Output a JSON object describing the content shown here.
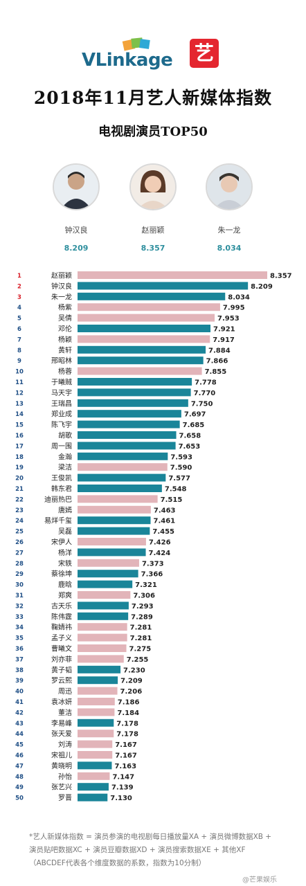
{
  "brand": {
    "name_v": "VLink",
    "name_age": "age",
    "badge": "艺",
    "badge_color": "#e4262f"
  },
  "title": "2018年11月艺人新媒体指数",
  "subtitle": "电视剧演员TOP50",
  "top3": [
    {
      "name": "钟汉良",
      "score": "8.209"
    },
    {
      "name": "赵丽颖",
      "score": "8.357"
    },
    {
      "name": "朱一龙",
      "score": "8.034"
    }
  ],
  "footnote": "*艺人新媒体指数 = 演员参演的电视剧每日播放量XA + 演员微博数据XB + 演员贴吧数据XC + 演员豆瓣数据XD + 演员搜索数据XE + 其他XF（ABCDEF代表各个维度数据的系数，指数为10分制）",
  "watermark": "@芒果娱乐",
  "colors": {
    "female": "#e2b4b9",
    "male": "#1a8599",
    "rank_top": "#d9232d",
    "rank": "#1f4f86"
  },
  "chart_data": {
    "type": "bar",
    "orientation": "horizontal",
    "title": "电视剧演员TOP50",
    "categories": [
      "赵丽颖",
      "钟汉良",
      "朱一龙",
      "杨紫",
      "吴倩",
      "邓伦",
      "杨颖",
      "黄轩",
      "邢昭林",
      "杨蓉",
      "于曦贼",
      "马天宇",
      "王瑞昌",
      "郑业成",
      "陈飞宇",
      "胡歌",
      "周一围",
      "金瀚",
      "梁洁",
      "王俊凯",
      "韩东君",
      "迪丽热巴",
      "唐嫣",
      "易烊千玺",
      "吴磊",
      "宋伊人",
      "杨洋",
      "宋轶",
      "蔡徐坤",
      "鹿晗",
      "郑爽",
      "古天乐",
      "陈伟霆",
      "鞠婧祎",
      "孟子义",
      "曹曦文",
      "刘亦菲",
      "黄子韬",
      "罗云熙",
      "周迅",
      "袁冰妍",
      "董洁",
      "李易峰",
      "张天爱",
      "刘涛",
      "宋祖儿",
      "黄晓明",
      "孙怡",
      "张艺兴",
      "罗晋"
    ],
    "values": [
      8.357,
      8.209,
      8.034,
      7.995,
      7.953,
      7.921,
      7.917,
      7.884,
      7.866,
      7.855,
      7.778,
      7.77,
      7.75,
      7.697,
      7.685,
      7.658,
      7.653,
      7.593,
      7.59,
      7.577,
      7.548,
      7.515,
      7.463,
      7.461,
      7.455,
      7.426,
      7.424,
      7.373,
      7.366,
      7.321,
      7.306,
      7.293,
      7.289,
      7.281,
      7.281,
      7.275,
      7.255,
      7.23,
      7.209,
      7.206,
      7.186,
      7.184,
      7.178,
      7.178,
      7.167,
      7.167,
      7.163,
      7.147,
      7.139,
      7.13
    ],
    "gender": [
      "f",
      "m",
      "m",
      "f",
      "f",
      "m",
      "f",
      "m",
      "m",
      "f",
      "m",
      "m",
      "m",
      "m",
      "m",
      "m",
      "m",
      "m",
      "f",
      "m",
      "m",
      "f",
      "f",
      "m",
      "m",
      "f",
      "m",
      "f",
      "m",
      "m",
      "f",
      "m",
      "m",
      "f",
      "f",
      "f",
      "f",
      "m",
      "m",
      "f",
      "f",
      "f",
      "m",
      "f",
      "f",
      "f",
      "m",
      "f",
      "m",
      "m"
    ],
    "ranks": [
      1,
      2,
      3,
      4,
      5,
      6,
      7,
      8,
      9,
      10,
      11,
      12,
      13,
      14,
      15,
      16,
      17,
      18,
      19,
      20,
      21,
      22,
      23,
      24,
      25,
      26,
      27,
      28,
      29,
      30,
      31,
      32,
      33,
      34,
      35,
      36,
      37,
      38,
      39,
      40,
      41,
      42,
      43,
      44,
      45,
      46,
      47,
      48,
      49,
      50
    ],
    "value_labels": [
      "8.357",
      "8.209",
      "8.034",
      "7.995",
      "7.953",
      "7.921",
      "7.917",
      "7.884",
      "7.866",
      "7.855",
      "7.778",
      "7.770",
      "7.750",
      "7.697",
      "7.685",
      "7.658",
      "7.653",
      "7.593",
      "7.590",
      "7.577",
      "7.548",
      "7.515",
      "7.463",
      "7.461",
      "7.455",
      "7.426",
      "7.424",
      "7.373",
      "7.366",
      "7.321",
      "7.306",
      "7.293",
      "7.289",
      "7.281",
      "7.281",
      "7.275",
      "7.255",
      "7.230",
      "7.209",
      "7.206",
      "7.186",
      "7.184",
      "7.178",
      "7.178",
      "7.167",
      "7.167",
      "7.163",
      "7.147",
      "7.139",
      "7.130"
    ],
    "xlim": [
      6.9,
      8.357
    ],
    "grid": false,
    "legend": "none"
  }
}
